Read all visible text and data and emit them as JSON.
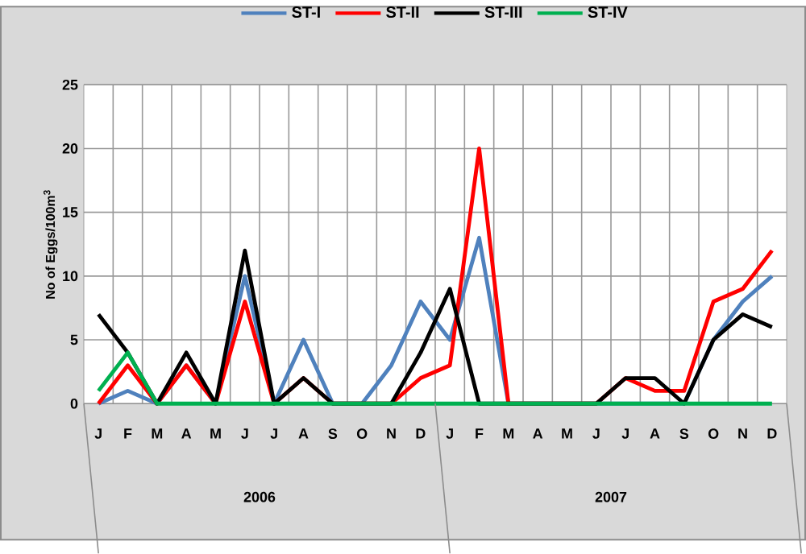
{
  "chart_data": {
    "type": "line",
    "categories": [
      "J",
      "F",
      "M",
      "A",
      "M",
      "J",
      "J",
      "A",
      "S",
      "O",
      "N",
      "D",
      "J",
      "F",
      "M",
      "A",
      "M",
      "J",
      "J",
      "A",
      "S",
      "O",
      "N",
      "D"
    ],
    "ylabel": "No of Eggs/100m$^{3}$",
    "annotations": [
      "2006",
      "2007"
    ],
    "ylim": [
      0,
      25
    ],
    "yticks": [
      0,
      5,
      10,
      15,
      20,
      25
    ],
    "grid": true,
    "legend": "top",
    "marker": "none",
    "line_style": "solid",
    "series": [
      {
        "name": "ST-I",
        "color": "#4f81bd",
        "values": [
          0,
          1,
          0,
          3,
          0,
          10,
          0,
          5,
          0,
          0,
          3,
          8,
          5,
          13,
          0,
          0,
          0,
          0,
          0,
          0,
          0,
          5,
          8,
          10
        ]
      },
      {
        "name": "ST-II",
        "color": "#ff0000",
        "values": [
          0,
          3,
          0,
          3,
          0,
          8,
          0,
          2,
          0,
          0,
          0,
          2,
          3,
          20,
          0,
          0,
          0,
          0,
          2,
          1,
          1,
          8,
          9,
          12
        ]
      },
      {
        "name": "ST-III",
        "color": "#000000",
        "values": [
          7,
          4,
          0,
          4,
          0,
          12,
          0,
          2,
          0,
          0,
          0,
          4,
          9,
          0,
          0,
          0,
          0,
          0,
          2,
          2,
          0,
          5,
          7,
          6
        ]
      },
      {
        "name": "ST-IV",
        "color": "#00b050",
        "values": [
          1,
          4,
          0,
          0,
          0,
          0,
          0,
          0,
          0,
          0,
          0,
          0,
          0,
          0,
          0,
          0,
          0,
          0,
          0,
          0,
          0,
          0,
          0,
          0
        ]
      }
    ]
  }
}
